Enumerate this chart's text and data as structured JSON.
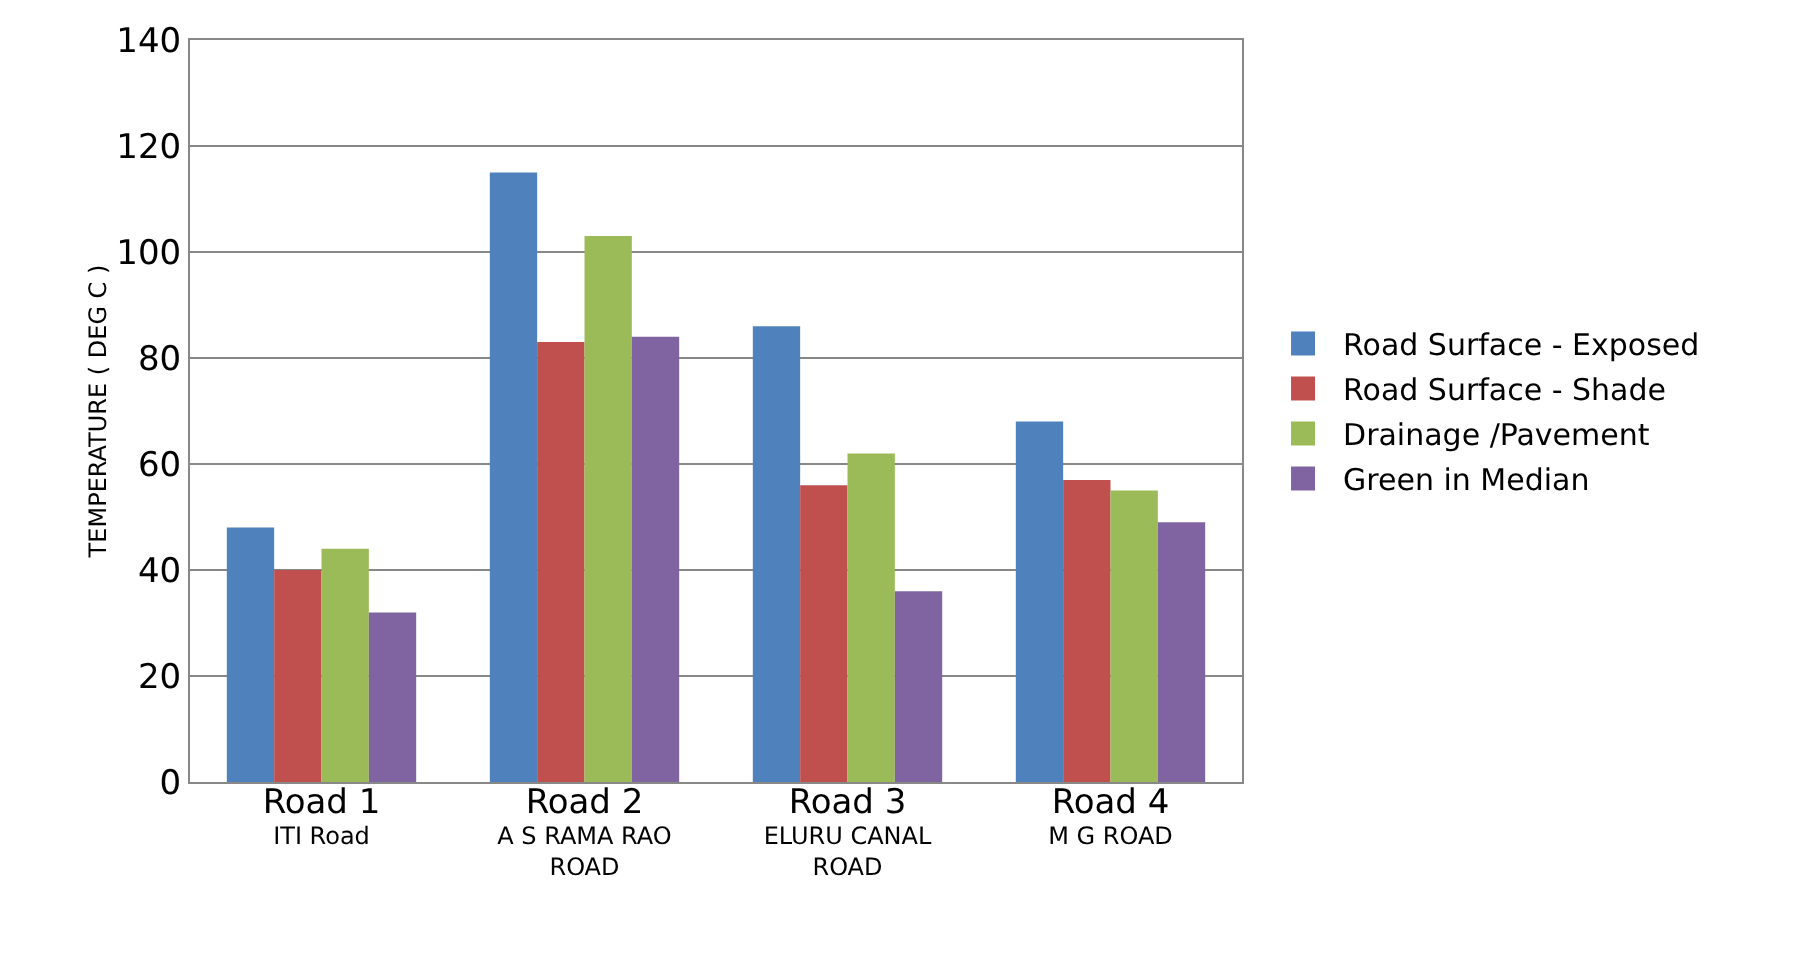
{
  "chart_data": {
    "type": "bar",
    "ylabel": "TEMPERATURE ( DEG C )",
    "categories": [
      "Road 1\nITI Road",
      "Road 2\nA S RAMA RAO\nROAD",
      "Road 3\nELURU CANAL\nROAD",
      "Road 4\nM G ROAD"
    ],
    "series": [
      {
        "name": "Road Surface - Exposed",
        "color": "#4f81bd",
        "values": [
          48,
          115,
          86,
          68
        ]
      },
      {
        "name": "Road Surface - Shade",
        "color": "#c0504d",
        "values": [
          40,
          83,
          56,
          57
        ]
      },
      {
        "name": "Drainage /Pavement",
        "color": "#9bbb59",
        "values": [
          44,
          103,
          62,
          55
        ]
      },
      {
        "name": "Green in Median",
        "color": "#8064a2",
        "values": [
          32,
          84,
          36,
          49
        ]
      }
    ],
    "ylim": [
      0,
      140
    ],
    "yticks": [
      0,
      20,
      40,
      60,
      80,
      100,
      120,
      140
    ],
    "grid": "y",
    "legend": "right"
  }
}
